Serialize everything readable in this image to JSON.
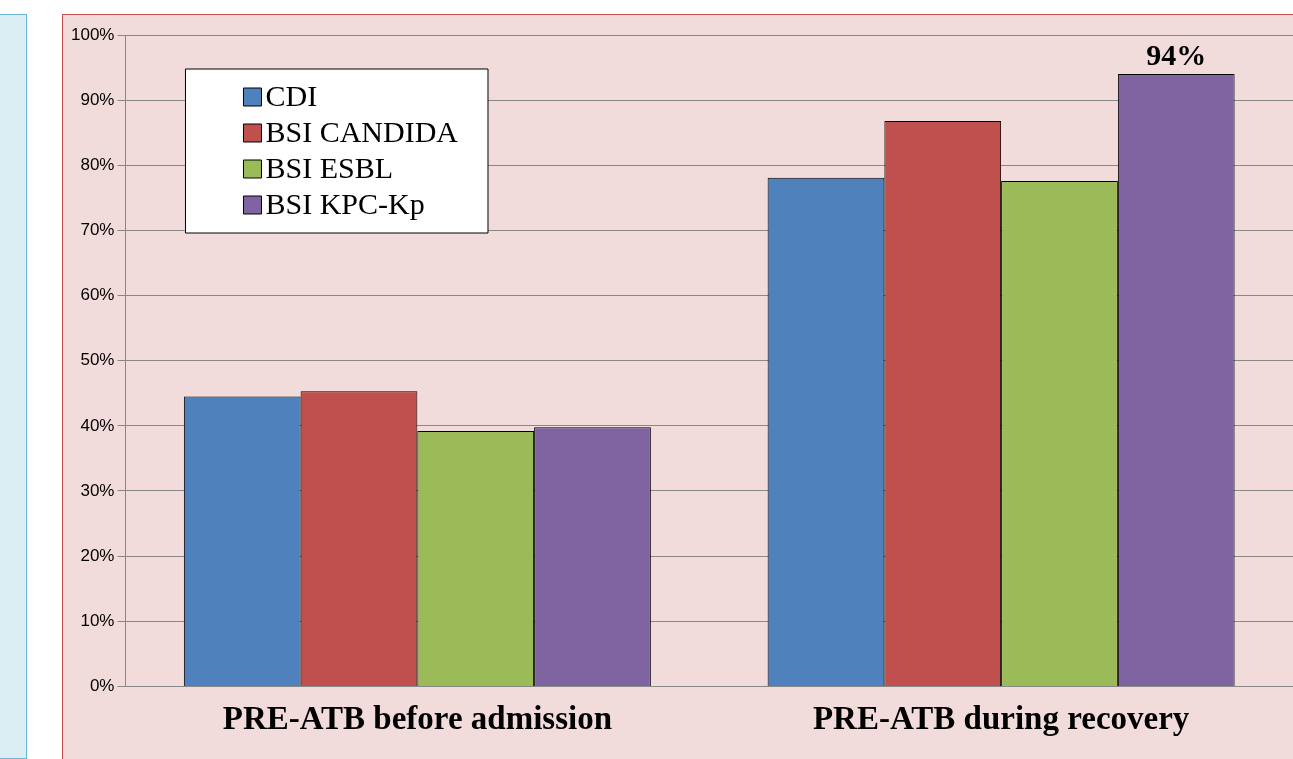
{
  "chart_data": {
    "type": "bar",
    "categories": [
      "PRE-ATB before admission",
      "PRE-ATB during recovery"
    ],
    "series": [
      {
        "name": "CDI",
        "color": "#4f81bd",
        "values": [
          44.5,
          78.1
        ]
      },
      {
        "name": "BSI CANDIDA",
        "color": "#c0504d",
        "values": [
          45.3,
          86.8
        ]
      },
      {
        "name": "BSI ESBL",
        "color": "#9bbb59",
        "values": [
          39.2,
          77.6
        ]
      },
      {
        "name": "BSI KPC-Kp",
        "color": "#8064a2",
        "values": [
          39.8,
          94
        ],
        "value_labels": [
          null,
          "94%"
        ]
      }
    ],
    "ylim": [
      0,
      100
    ],
    "yticks": [
      {
        "value": 0,
        "label": "0%"
      },
      {
        "value": 10,
        "label": "10%"
      },
      {
        "value": 20,
        "label": "20%"
      },
      {
        "value": 30,
        "label": "30%"
      },
      {
        "value": 40,
        "label": "40%"
      },
      {
        "value": 50,
        "label": "50%"
      },
      {
        "value": 60,
        "label": "60%"
      },
      {
        "value": 70,
        "label": "70%"
      },
      {
        "value": 80,
        "label": "80%"
      },
      {
        "value": 90,
        "label": "90%"
      },
      {
        "value": 100,
        "label": "100%"
      }
    ],
    "grid": "y",
    "legend": "top left"
  }
}
